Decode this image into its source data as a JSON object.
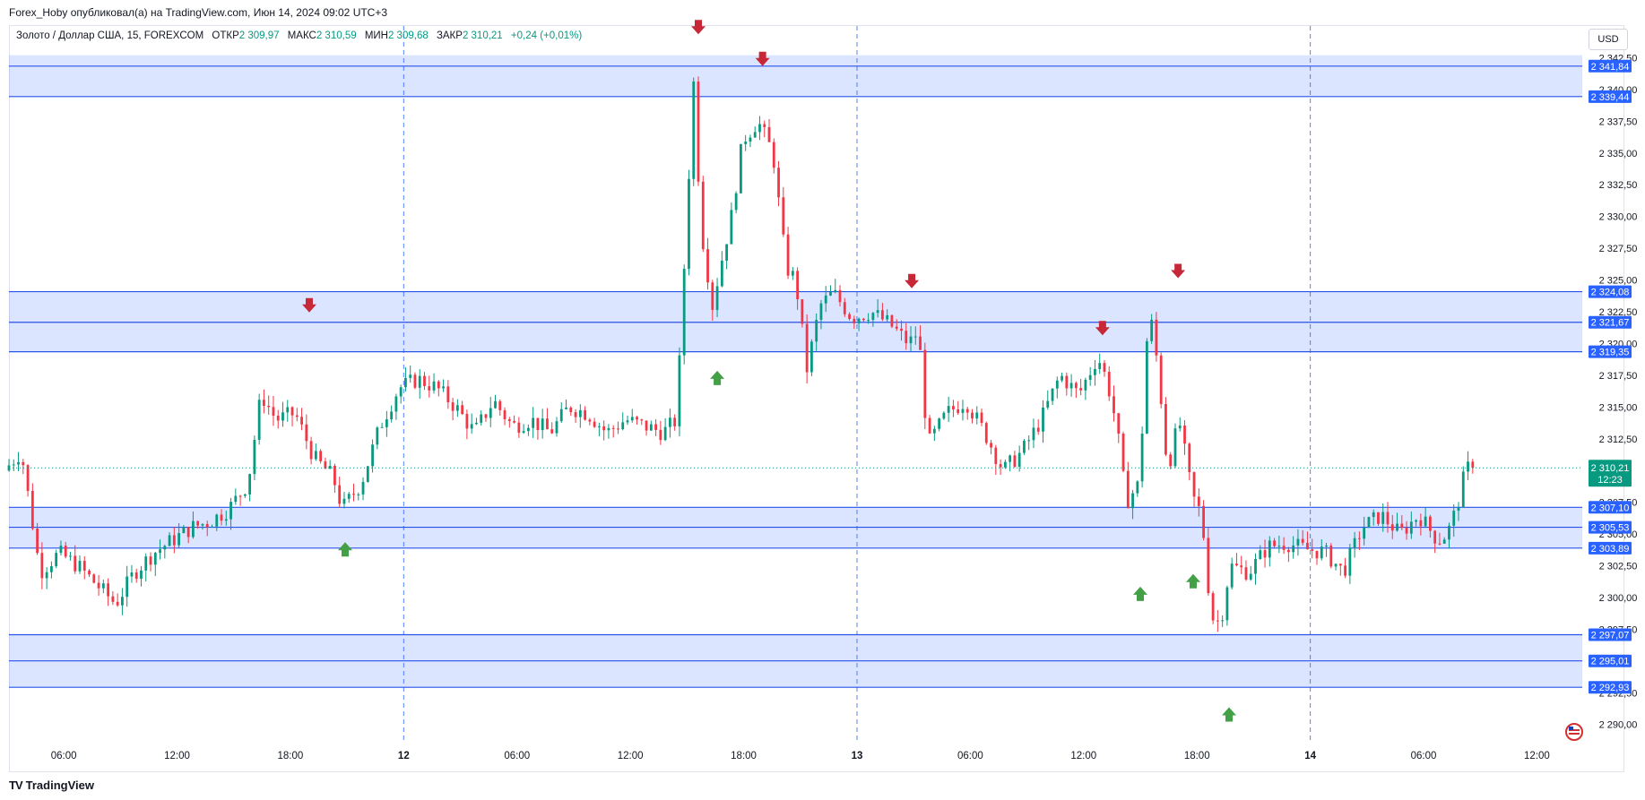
{
  "header": {
    "publisher_line": "Forex_Hoby опубликовал(а) на TradingView.com, Июн 14, 2024 09:02 UTC+3"
  },
  "symbol_info": {
    "name": "Золото / Доллар США, 15, FOREXCOM",
    "open_label": "ОТКР",
    "open_value": "2 309,97",
    "high_label": "МАКС",
    "high_value": "2 310,59",
    "low_label": "МИН",
    "low_value": "2 309,68",
    "close_label": "ЗАКР",
    "close_value": "2 310,21",
    "change": "+0,24 (+0,01%)"
  },
  "currency_button": "USD",
  "footer": {
    "brand": "TradingView",
    "logo": "TV"
  },
  "chart_data": {
    "type": "candlestick",
    "ylim": [
      2288.5,
      2345.0
    ],
    "y_ticks": [
      {
        "v": 2342.5,
        "t": "2 342,50"
      },
      {
        "v": 2340.0,
        "t": "2 340,00"
      },
      {
        "v": 2337.5,
        "t": "2 337,50"
      },
      {
        "v": 2335.0,
        "t": "2 335,00"
      },
      {
        "v": 2332.5,
        "t": "2 332,50"
      },
      {
        "v": 2330.0,
        "t": "2 330,00"
      },
      {
        "v": 2327.5,
        "t": "2 327,50"
      },
      {
        "v": 2325.0,
        "t": "2 325,00"
      },
      {
        "v": 2322.5,
        "t": "2 322,50"
      },
      {
        "v": 2320.0,
        "t": "2 320,00"
      },
      {
        "v": 2317.5,
        "t": "2 317,50"
      },
      {
        "v": 2315.0,
        "t": "2 315,00"
      },
      {
        "v": 2312.5,
        "t": "2 312,50"
      },
      {
        "v": 2307.5,
        "t": "2 307,50"
      },
      {
        "v": 2305.0,
        "t": "2 305,00"
      },
      {
        "v": 2302.5,
        "t": "2 302,50"
      },
      {
        "v": 2300.0,
        "t": "2 300,00"
      },
      {
        "v": 2297.5,
        "t": "2 297,50"
      },
      {
        "v": 2292.5,
        "t": "2 292,50"
      },
      {
        "v": 2290.0,
        "t": "2 290,00"
      }
    ],
    "x_ticks": [
      {
        "h": 6,
        "t": "06:00"
      },
      {
        "h": 12,
        "t": "12:00"
      },
      {
        "h": 18,
        "t": "18:00"
      },
      {
        "h": 24,
        "t": "12",
        "day": true
      },
      {
        "h": 30,
        "t": "06:00"
      },
      {
        "h": 36,
        "t": "12:00"
      },
      {
        "h": 42,
        "t": "18:00"
      },
      {
        "h": 48,
        "t": "13",
        "day": true
      },
      {
        "h": 54,
        "t": "06:00"
      },
      {
        "h": 60,
        "t": "12:00"
      },
      {
        "h": 66,
        "t": "18:00"
      },
      {
        "h": 72,
        "t": "14",
        "day": true
      },
      {
        "h": 78,
        "t": "06:00"
      },
      {
        "h": 84,
        "t": "12:00"
      }
    ],
    "x_range_hours": [
      3.1,
      86.4
    ],
    "last_price": {
      "value": 2310.21,
      "text": "2 310,21",
      "countdown": "12:23"
    },
    "zones": [
      {
        "top": 2342.7,
        "bottom": 2339.44
      },
      {
        "top": 2324.08,
        "bottom": 2319.35
      },
      {
        "top": 2307.1,
        "bottom": 2303.89
      },
      {
        "top": 2297.07,
        "bottom": 2292.93
      }
    ],
    "levels": [
      {
        "v": 2341.84,
        "t": "2 341,84"
      },
      {
        "v": 2339.44,
        "t": "2 339,44"
      },
      {
        "v": 2324.08,
        "t": "2 324,08"
      },
      {
        "v": 2321.67,
        "t": "2 321,67"
      },
      {
        "v": 2319.35,
        "t": "2 319,35"
      },
      {
        "v": 2307.1,
        "t": "2 307,10"
      },
      {
        "v": 2305.53,
        "t": "2 305,53"
      },
      {
        "v": 2303.89,
        "t": "2 303,89"
      },
      {
        "v": 2297.07,
        "t": "2 297,07"
      },
      {
        "v": 2295.01,
        "t": "2 295,01"
      },
      {
        "v": 2292.93,
        "t": "2 292,93"
      }
    ],
    "anchors": [
      [
        3.1,
        2310.0
      ],
      [
        4.0,
        2311.5
      ],
      [
        5.0,
        2302.0
      ],
      [
        6.0,
        2303.5
      ],
      [
        7.0,
        2302.5
      ],
      [
        8.0,
        2301.0
      ],
      [
        9.0,
        2299.5
      ],
      [
        10.0,
        2302.0
      ],
      [
        11.0,
        2303.5
      ],
      [
        12.0,
        2304.5
      ],
      [
        13.0,
        2305.5
      ],
      [
        14.0,
        2306.0
      ],
      [
        15.0,
        2307.0
      ],
      [
        16.0,
        2309.0
      ],
      [
        16.7,
        2316.0
      ],
      [
        17.5,
        2314.0
      ],
      [
        18.5,
        2314.5
      ],
      [
        19.5,
        2311.0
      ],
      [
        20.5,
        2309.5
      ],
      [
        21.0,
        2307.0
      ],
      [
        22.0,
        2309.0
      ],
      [
        23.0,
        2313.5
      ],
      [
        24.0,
        2316.5
      ],
      [
        25.0,
        2317.2
      ],
      [
        26.0,
        2316.5
      ],
      [
        27.0,
        2315.0
      ],
      [
        28.0,
        2313.0
      ],
      [
        29.0,
        2315.5
      ],
      [
        30.0,
        2313.5
      ],
      [
        31.0,
        2314.0
      ],
      [
        32.0,
        2313.0
      ],
      [
        33.0,
        2315.0
      ],
      [
        34.0,
        2314.5
      ],
      [
        35.0,
        2313.0
      ],
      [
        36.0,
        2314.0
      ],
      [
        37.0,
        2313.5
      ],
      [
        38.0,
        2313.0
      ],
      [
        38.7,
        2314.0
      ],
      [
        39.3,
        2332.0
      ],
      [
        39.6,
        2340.5
      ],
      [
        40.0,
        2329.0
      ],
      [
        40.6,
        2323.0
      ],
      [
        41.0,
        2326.0
      ],
      [
        41.6,
        2330.0
      ],
      [
        42.2,
        2336.0
      ],
      [
        43.0,
        2337.5
      ],
      [
        43.8,
        2335.0
      ],
      [
        44.5,
        2326.0
      ],
      [
        45.0,
        2325.0
      ],
      [
        45.6,
        2318.0
      ],
      [
        46.3,
        2323.0
      ],
      [
        47.0,
        2324.0
      ],
      [
        48.0,
        2322.0
      ],
      [
        49.0,
        2322.5
      ],
      [
        50.0,
        2321.5
      ],
      [
        51.0,
        2320.0
      ],
      [
        51.5,
        2321.0
      ],
      [
        52.0,
        2312.0
      ],
      [
        53.0,
        2314.5
      ],
      [
        54.0,
        2315.5
      ],
      [
        55.0,
        2313.0
      ],
      [
        56.0,
        2310.0
      ],
      [
        57.0,
        2311.5
      ],
      [
        58.0,
        2314.0
      ],
      [
        59.0,
        2317.5
      ],
      [
        60.0,
        2316.0
      ],
      [
        61.0,
        2319.0
      ],
      [
        61.5,
        2317.0
      ],
      [
        62.0,
        2313.5
      ],
      [
        62.5,
        2307.5
      ],
      [
        63.2,
        2309.0
      ],
      [
        63.7,
        2323.0
      ],
      [
        64.2,
        2318.0
      ],
      [
        64.7,
        2310.0
      ],
      [
        65.3,
        2314.0
      ],
      [
        66.0,
        2308.0
      ],
      [
        66.5,
        2306.5
      ],
      [
        67.0,
        2298.5
      ],
      [
        67.5,
        2298.0
      ],
      [
        68.0,
        2302.5
      ],
      [
        69.0,
        2302.0
      ],
      [
        70.0,
        2304.0
      ],
      [
        71.0,
        2304.3
      ],
      [
        72.0,
        2303.8
      ],
      [
        73.0,
        2303.6
      ],
      [
        74.0,
        2302.0
      ],
      [
        75.0,
        2305.5
      ],
      [
        76.0,
        2306.5
      ],
      [
        77.0,
        2305.0
      ],
      [
        78.0,
        2306.5
      ],
      [
        79.0,
        2304.5
      ],
      [
        79.5,
        2305.0
      ],
      [
        80.0,
        2307.0
      ],
      [
        80.5,
        2310.2
      ],
      [
        80.8,
        2310.2
      ]
    ],
    "arrows_down": [
      [
        39.6,
        2344.7
      ],
      [
        43.0,
        2342.2
      ],
      [
        19.0,
        2322.8
      ],
      [
        50.9,
        2324.7
      ],
      [
        61.0,
        2321.0
      ],
      [
        65.0,
        2325.5
      ]
    ],
    "arrows_up": [
      [
        20.9,
        2304.0
      ],
      [
        40.6,
        2317.5
      ],
      [
        63.0,
        2300.5
      ],
      [
        65.8,
        2301.5
      ],
      [
        67.7,
        2291.0
      ]
    ]
  }
}
